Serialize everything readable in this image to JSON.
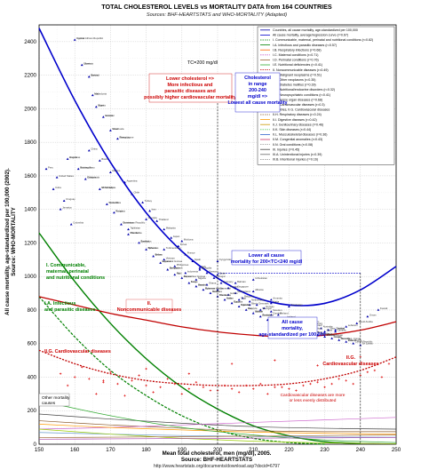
{
  "chart_data": {
    "type": "scatter",
    "title": "TOTAL CHOLESTEROL LEVELS vs MORTALITY DATA from 164 COUNTRIES",
    "subtitle": "Sources: BHF-HEARTSTATS and WHO-MORTALITY (Adapted)",
    "xlabel": "Mean total cholesterol, men (mg/dl), 2005.",
    "xlabel2": "Source: BHF-HEARTSTATS",
    "ylabel": "All cause mortality, age-standardized per 100,000 (2002).",
    "ylabel2": "Source: WHO-MORTALITY",
    "footer": "http://www.heartstats.org/documents/download.asp?docid=6797",
    "xlim": [
      150,
      250
    ],
    "ylim": [
      0,
      2500
    ],
    "xticks": [
      "150",
      "160",
      "170",
      "180",
      "190",
      "200",
      "210",
      "220",
      "230",
      "240",
      "250"
    ],
    "yticks": [
      "0",
      "200",
      "400",
      "600",
      "800",
      "1000",
      "1200",
      "1400",
      "1600",
      "1800",
      "2000",
      "2200",
      "2400"
    ],
    "grid": true,
    "legend_position": "top-right",
    "legend": [
      "Countries, all cause mortality, age-standardized per 100,000",
      "All cause mortality, average/regression curve (r=0.67)",
      "I. Communicable, maternal, perinatal and nutritional conditions (r=0.82)",
      "I.A. Infectious and parasitic diseases (r=0.57)",
      "I.B. Respiratory infections (r=0.68)",
      "I.C. Maternal conditions (r=0.71)",
      "I.D. Perinatal conditions (r=0.76)",
      "I.E. Nutritional deficiencies (r=0.41)",
      "II. Noncommunicable diseases (r=0.49)",
      "II.A. Malignant neoplasms (r=0.51)",
      "II.B. Other neoplasms (r=0.35)",
      "II.C. Diabetes mellitus (r=0.39)",
      "II.D. Nutritional/endocrine disorders (r=0.32)",
      "II.E. Neuropsychiatric conditions (r=0.41)",
      "II.F. Sense organ diseases (r=0.68)",
      "II.G. Cardiovascular diseases (r=0.3)",
      "Countries, II.G. Cardiovascular diseases",
      "II.H. Respiratory diseases (r=0.24)",
      "II.I. Digestive diseases (r=0.42)",
      "II.J. Genitourinary diseases (r=0.46)",
      "II.K. Skin diseases (r=0.44)",
      "II.L. Musculoskeletal diseases (r=0.36)",
      "II.M. Congenital anomalies (r=0.43)",
      "II.N. Oral conditions (r=0.08)",
      "III. Injuries (r=0.45)",
      "III.A. Unintentional injuries (r=0.39)",
      "III.B. Intentional injuries (r=0.16)"
    ],
    "annotations": [
      "TC=200 mg/dl",
      "Lower cholesterol => More infectious and parasitic diseases and possibly higher cardiovascular mortality",
      "Cholesterol in range 200-240 mg/dl => Lowest all cause mortality",
      "Lower all cause mortality for 200<TC<240 mg/dl",
      "All cause mortality, age-standardized per 100,000",
      "I. Communicable, maternal, perinatal and nutritional conditions",
      "I.A. Infectious and parasitic diseases",
      "II. Noncommunicable diseases",
      "II.G. Cardiovascular diseases",
      "II.G. Cardiovascular diseases",
      "Cardiovascular diseases are more or less evenly distributed",
      "Other mortality causes"
    ],
    "country_labels": [
      "Central African Republic",
      "Liberia",
      "Burundi",
      "Mali",
      "Niger",
      "Guinea",
      "Chad",
      "Sierra Leone",
      "Angola",
      "Burkina Faso",
      "Ethiopia",
      "Mozambique",
      "Tanzania",
      "Kenya",
      "Botswana",
      "Mauritania",
      "Zambia",
      "Djibouti",
      "Eritrea",
      "Equatorial Guinea",
      "Bangladesh",
      "Haiti",
      "Papua New Guinea",
      "Laos",
      "Nepal",
      "Myanmar",
      "Yemen",
      "Cambodia",
      "India",
      "Egypt",
      "Pakistan",
      "Iraq",
      "Bolivia",
      "Russia",
      "Belarus",
      "Ukraine",
      "Kazakhstan",
      "Hungary",
      "Romania",
      "Bulgaria",
      "Latvia",
      "Lithuania",
      "Estonia",
      "Croatia",
      "Slovakia",
      "Poland",
      "Czech Republic",
      "Sri Lanka",
      "China",
      "Brazil",
      "Mexico",
      "Argentina",
      "Chile",
      "Turkey",
      "Iran",
      "Thailand",
      "Malaysia",
      "Japan",
      "Korea",
      "France",
      "Spain",
      "Italy",
      "Greece",
      "Portugal",
      "Germany",
      "Austria",
      "Switzerland",
      "Belgium",
      "Netherlands",
      "Denmark",
      "Norway",
      "Sweden",
      "Finland",
      "Iceland",
      "Ireland",
      "United Kingdom",
      "Luxembourg",
      "Israel",
      "Australia",
      "New Zealand",
      "Canada",
      "United States",
      "Uruguay",
      "Colombia",
      "Peru",
      "Cuba",
      "Jamaica",
      "Vietnam",
      "Philippines",
      "Indonesia",
      "Nigeria",
      "Ghana",
      "Cameroon",
      "Gabon",
      "Togo",
      "Benin",
      "Senegal",
      "Gambia",
      "Tunisia",
      "Morocco",
      "Algeria",
      "Libya",
      "Syria",
      "Jordan",
      "Lebanon",
      "Saudi Arabia",
      "Oman",
      "Kuwait",
      "Qatar",
      "Bahrain",
      "Albania",
      "Armenia",
      "Azerbaijan",
      "Georgia",
      "Moldova",
      "Kyrgyzstan",
      "Uzbekistan",
      "Tajikistan",
      "Turkmenistan",
      "Mongolia",
      "Singapore",
      "Malta",
      "Cyprus",
      "Slovenia",
      "Serbia",
      "Macedonia",
      "Bosnia",
      "Ecuador",
      "Venezuela",
      "Paraguay",
      "Honduras",
      "Nicaragua",
      "Guatemala",
      "El Salvador",
      "Costa Rica",
      "Panama",
      "Dominican Republic",
      "Trinidad",
      "Barbados",
      "Bahamas",
      "Belize",
      "Guyana",
      "Suriname",
      "Fiji",
      "Samoa",
      "Tonga",
      "Vanuatu",
      "Solomon Islands",
      "Maldives",
      "Bhutan",
      "Sudan",
      "Somalia",
      "Uganda",
      "Rwanda",
      "Malawi",
      "Zimbabwe",
      "Namibia",
      "South Africa",
      "Lesotho",
      "Swaziland",
      "Madagascar",
      "Comoros",
      "Mauritius",
      "Cape Verde",
      "Guinea-Bissau",
      "Congo",
      "Dem. Rep. Congo",
      "Cote d'Ivoire"
    ],
    "series": [
      {
        "name": "All cause mortality, average/regression curve (r=0.67)",
        "x": [
          150,
          160,
          170,
          180,
          190,
          200,
          210,
          220,
          230,
          240,
          250
        ],
        "y": [
          2480,
          2050,
          1680,
          1380,
          1150,
          990,
          880,
          830,
          840,
          920,
          1060
        ]
      },
      {
        "name": "I. Communicable, maternal, perinatal and nutritional conditions (r=0.82)",
        "x": [
          150,
          160,
          170,
          180,
          190,
          200,
          210,
          220,
          230,
          240
        ],
        "y": [
          1260,
          970,
          720,
          510,
          340,
          210,
          110,
          50,
          15,
          5
        ]
      },
      {
        "name": "I.A. Infectious and parasitic diseases (r=0.57)",
        "x": [
          150,
          160,
          170,
          180,
          190,
          200,
          210,
          220,
          230
        ],
        "y": [
          880,
          640,
          440,
          290,
          170,
          85,
          35,
          10,
          0
        ]
      },
      {
        "name": "II. Noncommunicable diseases (r=0.49)",
        "x": [
          150,
          160,
          170,
          180,
          190,
          200,
          210,
          220,
          230,
          240,
          250
        ],
        "y": [
          880,
          830,
          780,
          740,
          700,
          670,
          650,
          640,
          650,
          680,
          730
        ]
      },
      {
        "name": "II.G. Cardiovascular diseases (r=0.3)",
        "x": [
          150,
          160,
          170,
          180,
          190,
          200,
          210,
          220,
          230,
          240,
          250
        ],
        "y": [
          560,
          480,
          420,
          380,
          360,
          350,
          350,
          360,
          390,
          440,
          520
        ]
      },
      {
        "name": "III. Injuries (r=0.45)",
        "x": [
          150,
          170,
          190,
          210,
          230,
          250
        ],
        "y": [
          180,
          150,
          125,
          105,
          95,
          90
        ]
      },
      {
        "name": "II.H. Respiratory diseases (r=0.24)",
        "x": [
          150,
          170,
          190,
          210,
          230,
          250
        ],
        "y": [
          140,
          115,
          95,
          80,
          75,
          75
        ]
      },
      {
        "name": "II.A. Malignant neoplasms (r=0.51)",
        "x": [
          150,
          170,
          190,
          210,
          230,
          250
        ],
        "y": [
          90,
          100,
          115,
          130,
          145,
          160
        ]
      },
      {
        "name": "III.A. Unintentional injuries (r=0.39)",
        "x": [
          150,
          170,
          190,
          210,
          230,
          250
        ],
        "y": [
          120,
          100,
          85,
          72,
          65,
          60
        ]
      },
      {
        "name": "II.I. Digestive diseases (r=0.42)",
        "x": [
          150,
          170,
          190,
          210,
          230,
          250
        ],
        "y": [
          70,
          60,
          52,
          46,
          43,
          42
        ]
      },
      {
        "name": "I.B. Respiratory infections (r=0.68)",
        "x": [
          150,
          170,
          190,
          210,
          230,
          250
        ],
        "y": [
          260,
          170,
          100,
          55,
          25,
          10
        ]
      },
      {
        "name": "I.D. Perinatal conditions (r=0.76)",
        "x": [
          150,
          170,
          190,
          210,
          230,
          250
        ],
        "y": [
          90,
          60,
          35,
          18,
          8,
          3
        ]
      },
      {
        "name": "II.E. Neuropsychiatric conditions (r=0.41)",
        "x": [
          150,
          170,
          190,
          210,
          230,
          250
        ],
        "y": [
          40,
          42,
          45,
          48,
          52,
          55
        ]
      },
      {
        "name": "II.C. Diabetes mellitus (r=0.39)",
        "x": [
          150,
          170,
          190,
          210,
          230,
          250
        ],
        "y": [
          30,
          32,
          34,
          36,
          38,
          40
        ]
      }
    ],
    "points_all": {
      "x": [
        160,
        162,
        164,
        165,
        166,
        168,
        170,
        172,
        158,
        161,
        163,
        167,
        169,
        171,
        173,
        175,
        178,
        180,
        182,
        184,
        186,
        188,
        190,
        192,
        194,
        196,
        198,
        200,
        202,
        204,
        206,
        208,
        210,
        212,
        214,
        216,
        218,
        220,
        222,
        224,
        226,
        228,
        230,
        232,
        234,
        236,
        238,
        240,
        164,
        167,
        170,
        174,
        176,
        179,
        181,
        183,
        185,
        187,
        189,
        191,
        193,
        195,
        197,
        199,
        201,
        203,
        205,
        207,
        209,
        211,
        213,
        215,
        217,
        219,
        221,
        223,
        225,
        227,
        229,
        231,
        233,
        155,
        157,
        159,
        152,
        154,
        156,
        185,
        188,
        191,
        194,
        197,
        200,
        203,
        206,
        209,
        212,
        215,
        218,
        221,
        224,
        227,
        230,
        233,
        236,
        239,
        242,
        245,
        200,
        205,
        210,
        215,
        220,
        180,
        190,
        200,
        210,
        175,
        185,
        195,
        205,
        215
      ],
      "y": [
        2410,
        2260,
        2190,
        2080,
        2010,
        1950,
        1870,
        1820,
        1700,
        1640,
        1580,
        1520,
        1430,
        1380,
        1310,
        1250,
        1200,
        1160,
        1120,
        1080,
        1040,
        1010,
        990,
        960,
        940,
        920,
        900,
        880,
        860,
        840,
        820,
        800,
        780,
        760,
        740,
        720,
        700,
        690,
        680,
        670,
        660,
        650,
        640,
        630,
        620,
        610,
        600,
        590,
        1750,
        1690,
        1620,
        1560,
        1490,
        1440,
        1390,
        1330,
        1280,
        1230,
        1180,
        1130,
        1090,
        1050,
        1020,
        990,
        960,
        930,
        900,
        870,
        850,
        830,
        810,
        790,
        770,
        750,
        730,
        720,
        710,
        700,
        690,
        680,
        670,
        1590,
        1450,
        1310,
        1640,
        1520,
        1400,
        1100,
        1060,
        1020,
        980,
        950,
        920,
        890,
        860,
        830,
        800,
        770,
        740,
        710,
        690,
        680,
        670,
        680,
        700,
        720,
        760,
        800,
        1010,
        960,
        910,
        860,
        820,
        1340,
        1210,
        1090,
        980,
        1280,
        1160,
        1040,
        930,
        840
      ]
    },
    "points_cvd": {
      "x": [
        156,
        160,
        164,
        168,
        172,
        176,
        180,
        184,
        188,
        192,
        196,
        200,
        204,
        208,
        212,
        216,
        220,
        224,
        228,
        232,
        236,
        240,
        244,
        248,
        162,
        170,
        178,
        186,
        194,
        202,
        210,
        218,
        226,
        234,
        242,
        166,
        174,
        182,
        190,
        198,
        206,
        214,
        222,
        230,
        238,
        246,
        158,
        168,
        180,
        192,
        204,
        216,
        228,
        240
      ],
      "y": [
        420,
        400,
        390,
        370,
        360,
        380,
        350,
        340,
        360,
        330,
        340,
        320,
        330,
        350,
        360,
        340,
        330,
        350,
        370,
        360,
        380,
        410,
        440,
        480,
        460,
        430,
        410,
        390,
        370,
        350,
        330,
        340,
        360,
        390,
        430,
        300,
        290,
        310,
        300,
        320,
        310,
        300,
        320,
        340,
        360,
        400,
        350,
        380,
        450,
        420,
        480,
        500,
        470,
        520
      ]
    }
  }
}
